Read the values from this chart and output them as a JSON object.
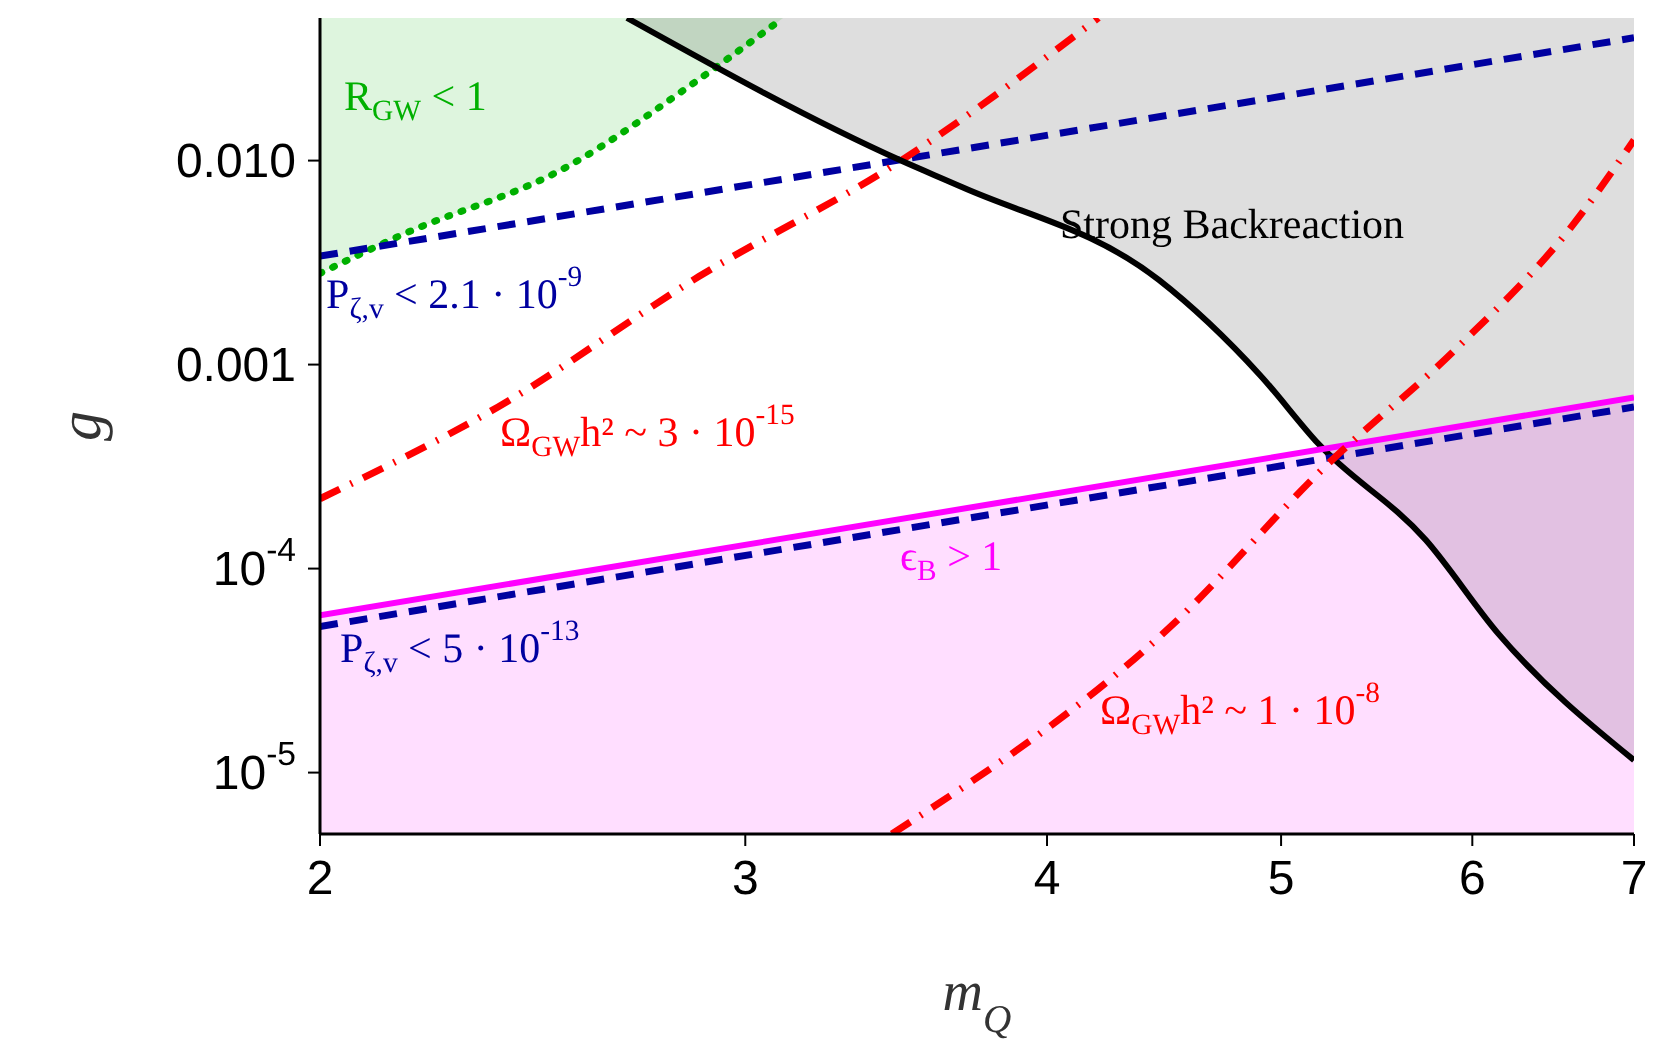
{
  "chart_data": {
    "type": "line",
    "xlabel": "m$_{Q}$",
    "ylabel": "g",
    "log": "xy",
    "xlim": [
      2,
      7
    ],
    "xticks": [
      2,
      3,
      4,
      5,
      6,
      7
    ],
    "ylim": [
      5e-06,
      0.05
    ],
    "yticks": [
      {
        "value": 0.01,
        "label": "0.010"
      },
      {
        "value": 0.001,
        "label": "0.001"
      },
      {
        "value": 0.0001,
        "label": "10$^{-4}$"
      },
      {
        "value": 1e-05,
        "label": "10$^{-5}$"
      }
    ],
    "series": [
      {
        "color": "#00b000",
        "line_style": "dotted",
        "x": [
          2,
          2.16,
          2.53,
          2.87,
          3.11
        ],
        "values": [
          0.0028,
          0.0043,
          0.0093,
          0.025,
          0.05
        ],
        "lower": [
          0.0028,
          0.0043,
          0.0093,
          0.025,
          0.05
        ],
        "upper": [
          0.05,
          0.05,
          0.05,
          0.05,
          0.05
        ]
      },
      {
        "color": "#0000a0",
        "line_style": "dashed",
        "x": [
          2,
          7
        ],
        "values": [
          0.0034,
          0.04
        ]
      },
      {
        "color": "#ff0000",
        "line_style": "dashdot",
        "x": [
          2,
          2.37,
          2.87,
          3.48,
          4.2
        ],
        "values": [
          0.00022,
          0.00062,
          0.0027,
          0.01,
          0.05
        ]
      },
      {
        "color": "#000000",
        "line_style": "solid",
        "x": [
          2.68,
          3.48,
          3.69,
          4.45,
          4.9,
          5.18,
          5.74,
          6.15,
          7
        ],
        "values": [
          0.05,
          0.01,
          0.0074,
          0.0026,
          0.00089,
          0.00041,
          0.000138,
          4.8e-05,
          1.15e-05
        ],
        "lower": [
          0.05,
          0.01,
          0.0074,
          0.0026,
          0.00089,
          0.00041,
          0.000138,
          4.8e-05,
          1.15e-05
        ],
        "upper": [
          0.05,
          0.05,
          0.05,
          0.05,
          0.05,
          0.05,
          0.05,
          0.05,
          0.05
        ]
      },
      {
        "color": "#ff00ff",
        "line_style": "solid",
        "x": [
          2,
          7
        ],
        "values": [
          5.9e-05,
          0.00069
        ],
        "lower": [
          5e-06,
          5e-06
        ],
        "upper": [
          5.9e-05,
          0.00069
        ]
      },
      {
        "color": "#0000a0",
        "line_style": "dashed",
        "x": [
          2,
          7
        ],
        "values": [
          5.2e-05,
          0.00062
        ]
      },
      {
        "color": "#ff0000",
        "line_style": "dashdot",
        "x": [
          3.45,
          4.5,
          5.22,
          5.91,
          6.6,
          7
        ],
        "values": [
          5e-06,
          5.2e-05,
          0.00032,
          0.0012,
          0.0048,
          0.0126
        ]
      }
    ],
    "annotations": [
      "R$_{GW}$ < 1",
      "P$_{ζ,v}$ < 2.1 · 10$^{-9}$",
      "Ω$_{GW}$h² ~ 3 · 10$^{-15}$",
      "Strong Backreaction",
      "ϵ$_{B}$ > 1",
      "P$_{ζ,v}$ < 5 · 10$^{-13}$",
      "Ω$_{GW}$h² ~ 1 · 10$^{-8}$"
    ]
  }
}
